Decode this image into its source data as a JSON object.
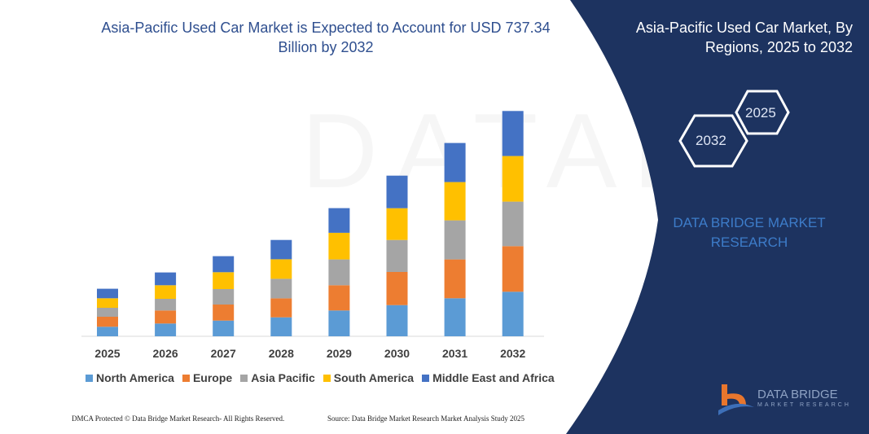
{
  "title": "Asia-Pacific Used Car Market is Expected to Account for USD 737.34 Billion by 2032",
  "right_panel": {
    "title": "Asia-Pacific Used Car Market, By Regions, 2025 to 2032",
    "hex_start": "2025",
    "hex_end": "2032",
    "brand_text": "DATA BRIDGE MARKET RESEARCH",
    "logo_text": "DATA BRIDGE",
    "logo_subtext": "MARKET RESEARCH"
  },
  "footer": {
    "left": "DMCA Protected © Data Bridge Market Research- All Rights Reserved.",
    "right": "Source: Data Bridge Market Research Market Analysis Study 2025"
  },
  "colors": {
    "panel": "#1d3360",
    "title": "#2f4f8f"
  },
  "chart_data": {
    "type": "bar",
    "stacked": true,
    "categories": [
      "2025",
      "2026",
      "2027",
      "2028",
      "2029",
      "2030",
      "2031",
      "2032"
    ],
    "series": [
      {
        "name": "North America",
        "color": "#5b9bd5",
        "values": [
          11.7,
          15.7,
          19.3,
          23.3,
          31.7,
          38.3,
          46.7,
          54.7
        ]
      },
      {
        "name": "Europe",
        "color": "#ed7d31",
        "values": [
          12.3,
          16,
          19.7,
          23.3,
          31,
          40.7,
          47.7,
          56
        ]
      },
      {
        "name": "Asia Pacific",
        "color": "#a5a5a5",
        "values": [
          11,
          14.3,
          19,
          24,
          31.7,
          39.3,
          48,
          54.7
        ]
      },
      {
        "name": "South America",
        "color": "#ffc000",
        "values": [
          11.7,
          16.7,
          20.7,
          24,
          32.7,
          39,
          47,
          56
        ]
      },
      {
        "name": "Middle East and Africa",
        "color": "#4472c4",
        "values": [
          11.7,
          15.7,
          19.7,
          23.7,
          30.3,
          40,
          48,
          55.3
        ]
      }
    ],
    "ylim": [
      0,
      285
    ],
    "grid": false,
    "legend": "bottom"
  }
}
